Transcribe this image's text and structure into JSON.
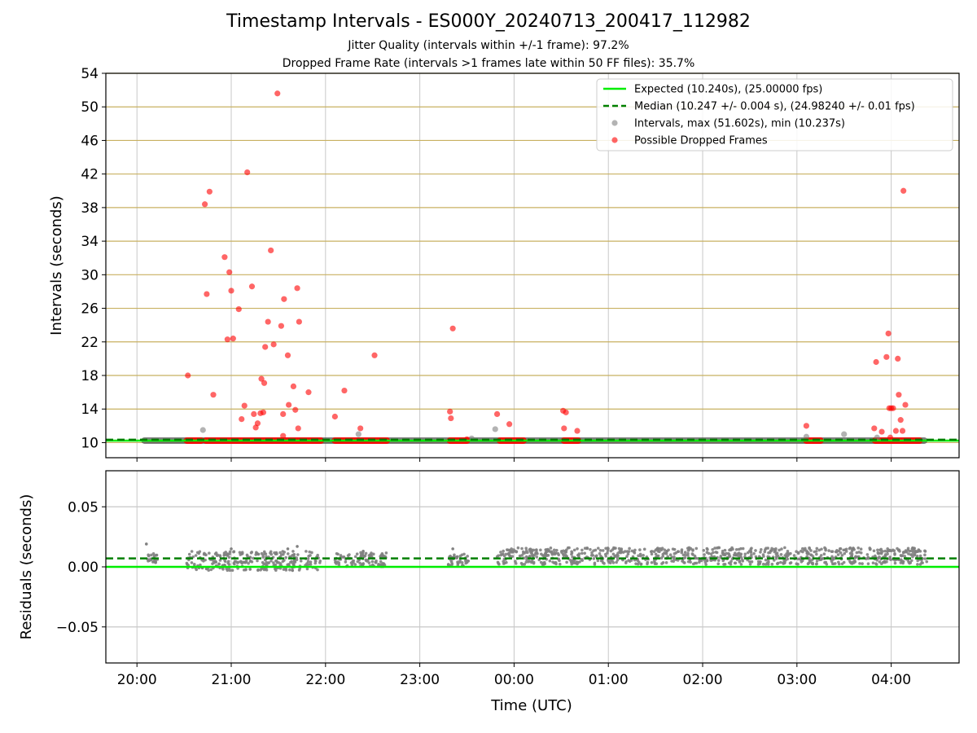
{
  "title": "Timestamp Intervals - ES000Y_20240713_200417_112982",
  "subtitle_lines": [
    "Jitter Quality (intervals within +/-1 frame): 97.2%",
    "Dropped Frame Rate (intervals >1 frames late within 50 FF files): 35.7%"
  ],
  "colors": {
    "expected": "#00ee00",
    "median": "#008000",
    "intervals": "#808080",
    "dropped": "#ff0000",
    "hgrid_top": "#c8b060",
    "grid": "#c8c8c8"
  },
  "chart_data": [
    {
      "type": "scatter",
      "panel": "intervals",
      "xlabel": "",
      "ylabel": "Intervals (seconds)",
      "xlim": [
        -0.33,
        8.72
      ],
      "ylim": [
        8.2,
        54
      ],
      "yticks": [
        10,
        14,
        18,
        22,
        26,
        30,
        34,
        38,
        42,
        46,
        50,
        54
      ],
      "xticks": [
        0,
        1,
        2,
        3,
        4,
        5,
        6,
        7,
        8
      ],
      "xtick_labels": [
        "20:00",
        "21:00",
        "22:00",
        "23:00",
        "00:00",
        "01:00",
        "02:00",
        "03:00",
        "04:00"
      ],
      "x_unit": "hours after 20:00 UTC",
      "grid": "both",
      "legend_position": "top-right",
      "legend": [
        "Expected (10.240s), (25.00000 fps)",
        "Median (10.247 +/- 0.004 s), (24.98240 +/- 0.01 fps)",
        "Intervals, max (51.602s), min (10.237s)",
        "Possible Dropped Frames"
      ],
      "expected_line": 10.24,
      "median_line": 10.247,
      "interval_band": {
        "x_start": 0.08,
        "x_end": 8.35,
        "y": 10.24
      },
      "dropped_bands": [
        {
          "x_start": 0.53,
          "x_end": 0.68,
          "y": 10.24
        },
        {
          "x_start": 0.73,
          "x_end": 1.95,
          "y": 10.24
        },
        {
          "x_start": 2.1,
          "x_end": 2.65,
          "y": 10.24
        },
        {
          "x_start": 3.32,
          "x_end": 3.5,
          "y": 10.24
        },
        {
          "x_start": 3.85,
          "x_end": 4.1,
          "y": 10.24
        },
        {
          "x_start": 4.53,
          "x_end": 4.68,
          "y": 10.24
        },
        {
          "x_start": 7.1,
          "x_end": 7.25,
          "y": 10.24
        },
        {
          "x_start": 7.83,
          "x_end": 8.3,
          "y": 10.24
        }
      ],
      "intervals_points": [
        [
          0.7,
          11.5
        ],
        [
          2.35,
          11.0
        ],
        [
          3.55,
          10.5
        ],
        [
          3.8,
          11.6
        ],
        [
          7.1,
          10.7
        ],
        [
          7.5,
          11.0
        ],
        [
          7.85,
          10.6
        ]
      ],
      "dropped_points": [
        [
          0.54,
          18.0
        ],
        [
          0.72,
          38.4
        ],
        [
          0.77,
          39.9
        ],
        [
          0.81,
          15.7
        ],
        [
          0.93,
          32.1
        ],
        [
          0.96,
          22.3
        ],
        [
          0.98,
          30.3
        ],
        [
          1.0,
          28.1
        ],
        [
          1.02,
          22.4
        ],
        [
          1.08,
          25.9
        ],
        [
          1.11,
          12.8
        ],
        [
          1.14,
          14.4
        ],
        [
          1.17,
          42.2
        ],
        [
          1.22,
          28.6
        ],
        [
          1.24,
          13.4
        ],
        [
          1.26,
          11.8
        ],
        [
          1.28,
          12.3
        ],
        [
          1.31,
          13.5
        ],
        [
          1.32,
          17.6
        ],
        [
          1.34,
          13.6
        ],
        [
          1.35,
          17.1
        ],
        [
          1.36,
          21.4
        ],
        [
          1.39,
          24.4
        ],
        [
          1.42,
          32.9
        ],
        [
          1.45,
          21.7
        ],
        [
          1.49,
          51.6
        ],
        [
          1.53,
          23.9
        ],
        [
          1.55,
          13.4
        ],
        [
          1.56,
          27.1
        ],
        [
          1.6,
          20.4
        ],
        [
          1.61,
          14.5
        ],
        [
          1.66,
          16.7
        ],
        [
          1.68,
          13.9
        ],
        [
          1.7,
          28.4
        ],
        [
          1.71,
          11.7
        ],
        [
          1.72,
          24.4
        ],
        [
          1.82,
          16.0
        ],
        [
          1.55,
          10.8
        ],
        [
          0.74,
          27.7
        ],
        [
          2.1,
          13.1
        ],
        [
          2.2,
          16.2
        ],
        [
          2.37,
          11.7
        ],
        [
          2.52,
          20.4
        ],
        [
          3.32,
          13.7
        ],
        [
          3.33,
          12.9
        ],
        [
          3.35,
          23.6
        ],
        [
          3.5,
          10.4
        ],
        [
          3.82,
          13.4
        ],
        [
          3.95,
          12.2
        ],
        [
          4.52,
          13.8
        ],
        [
          4.53,
          11.7
        ],
        [
          4.55,
          13.6
        ],
        [
          4.67,
          11.4
        ],
        [
          7.1,
          12.0
        ],
        [
          7.82,
          11.7
        ],
        [
          7.84,
          19.6
        ],
        [
          7.9,
          11.3
        ],
        [
          7.95,
          20.2
        ],
        [
          7.97,
          23.0
        ],
        [
          7.98,
          14.1
        ],
        [
          8.0,
          14.1
        ],
        [
          8.02,
          14.1
        ],
        [
          8.05,
          11.4
        ],
        [
          8.07,
          20.0
        ],
        [
          8.08,
          15.7
        ],
        [
          8.1,
          12.7
        ],
        [
          8.12,
          11.4
        ],
        [
          8.13,
          40.0
        ],
        [
          8.15,
          14.5
        ],
        [
          7.99,
          10.6
        ]
      ]
    },
    {
      "type": "scatter",
      "panel": "residuals",
      "xlabel": "Time (UTC)",
      "ylabel": "Residuals (seconds)",
      "xlim": [
        -0.33,
        8.72
      ],
      "ylim": [
        -0.08,
        0.08
      ],
      "yticks": [
        -0.05,
        0.0,
        0.05
      ],
      "ytick_labels": [
        "−0.05",
        "0.00",
        "0.05"
      ],
      "xticks": [
        0,
        1,
        2,
        3,
        4,
        5,
        6,
        7,
        8
      ],
      "xtick_labels": [
        "20:00",
        "21:00",
        "22:00",
        "23:00",
        "00:00",
        "01:00",
        "02:00",
        "03:00",
        "04:00"
      ],
      "grid": "both",
      "expected_line": 0.0,
      "median_line": 0.007,
      "residual_segments": [
        {
          "x_start": 0.1,
          "x_end": 0.22,
          "y_min": 0.002,
          "y_max": 0.011
        },
        {
          "x_start": 0.52,
          "x_end": 1.95,
          "y_min": -0.003,
          "y_max": 0.013
        },
        {
          "x_start": 2.1,
          "x_end": 2.65,
          "y_min": 0.0,
          "y_max": 0.012
        },
        {
          "x_start": 3.3,
          "x_end": 3.52,
          "y_min": 0.001,
          "y_max": 0.011
        },
        {
          "x_start": 3.82,
          "x_end": 8.38,
          "y_min": 0.002,
          "y_max": 0.016
        }
      ],
      "residual_outliers": [
        [
          0.1,
          0.019
        ],
        [
          1.0,
          0.015
        ],
        [
          1.6,
          0.015
        ],
        [
          1.7,
          0.017
        ],
        [
          2.4,
          0.013
        ],
        [
          3.35,
          0.015
        ],
        [
          1.2,
          -0.002
        ],
        [
          1.65,
          -0.003
        ]
      ]
    }
  ]
}
